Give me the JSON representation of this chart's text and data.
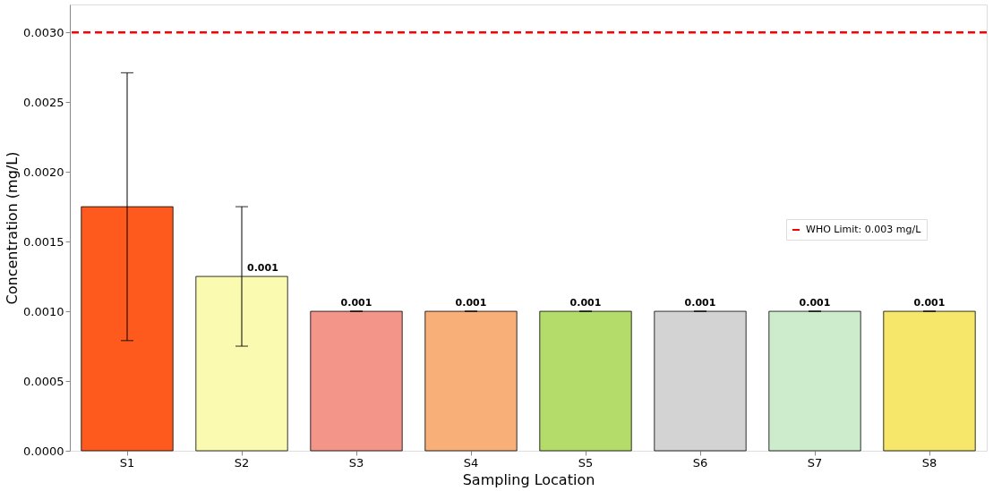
{
  "chart_data": {
    "type": "bar",
    "xlabel": "Sampling Location",
    "ylabel": "Concentration (mg/L)",
    "categories": [
      "S1",
      "S2",
      "S3",
      "S4",
      "S5",
      "S6",
      "S7",
      "S8"
    ],
    "values": [
      0.00175,
      0.00125,
      0.001,
      0.001,
      0.001,
      0.001,
      0.001,
      0.001
    ],
    "colors": [
      "#fe5a1d",
      "#fafab0",
      "#f4958a",
      "#f8b078",
      "#b3dc6a",
      "#d3d3d3",
      "#cdeccb",
      "#f6e66a"
    ],
    "errors": [
      0.00096,
      0.0005,
      0,
      0,
      0,
      0,
      0,
      0
    ],
    "value_labels": [
      null,
      "0.001",
      "0.001",
      "0.001",
      "0.001",
      "0.001",
      "0.001",
      "0.001"
    ],
    "ylim": [
      0,
      0.0032
    ],
    "yticks": [
      {
        "value": 0,
        "label": "0.0000"
      },
      {
        "value": 0.0005,
        "label": "0.0005"
      },
      {
        "value": 0.001,
        "label": "0.0010"
      },
      {
        "value": 0.0015,
        "label": "0.0015"
      },
      {
        "value": 0.002,
        "label": "0.0020"
      },
      {
        "value": 0.0025,
        "label": "0.0025"
      },
      {
        "value": 0.003,
        "label": "0.0030"
      }
    ],
    "ref_lines": [
      {
        "axis": "y",
        "value": 0.003,
        "label": "WHO Limit: 0.003 mg/L",
        "color": "#ff0000",
        "line_style": "dashed"
      }
    ],
    "grid": false,
    "legend": "right"
  }
}
